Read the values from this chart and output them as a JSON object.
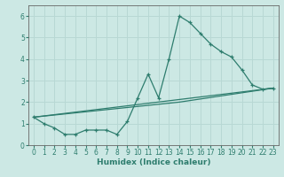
{
  "xlabel": "Humidex (Indice chaleur)",
  "line_color": "#2e7d6e",
  "bg_color": "#cce8e4",
  "grid_color": "#b8d8d4",
  "xlim": [
    -0.5,
    23.5
  ],
  "ylim": [
    0,
    6.5
  ],
  "yticks": [
    0,
    1,
    2,
    3,
    4,
    5,
    6
  ],
  "xticks": [
    0,
    1,
    2,
    3,
    4,
    5,
    6,
    7,
    8,
    9,
    10,
    11,
    12,
    13,
    14,
    15,
    16,
    17,
    18,
    19,
    20,
    21,
    22,
    23
  ],
  "curve1_x": [
    0,
    1,
    2,
    3,
    4,
    5,
    6,
    7,
    8,
    9,
    10,
    11,
    12,
    13,
    14,
    15,
    16,
    17,
    18,
    19,
    20,
    21,
    22,
    23
  ],
  "curve1_y": [
    1.3,
    1.0,
    0.8,
    0.5,
    0.5,
    0.7,
    0.7,
    0.7,
    0.5,
    1.1,
    2.2,
    3.3,
    2.2,
    4.0,
    6.0,
    5.7,
    5.2,
    4.7,
    4.35,
    4.1,
    3.5,
    2.8,
    2.6,
    2.65
  ],
  "curve2_x": [
    0,
    23
  ],
  "curve2_y": [
    1.3,
    2.65
  ],
  "curve3_x": [
    0,
    14,
    23
  ],
  "curve3_y": [
    1.3,
    2.0,
    2.65
  ],
  "xlabel_fontsize": 6.5,
  "tick_fontsize": 5.5,
  "linewidth": 0.9,
  "markersize": 3.0
}
